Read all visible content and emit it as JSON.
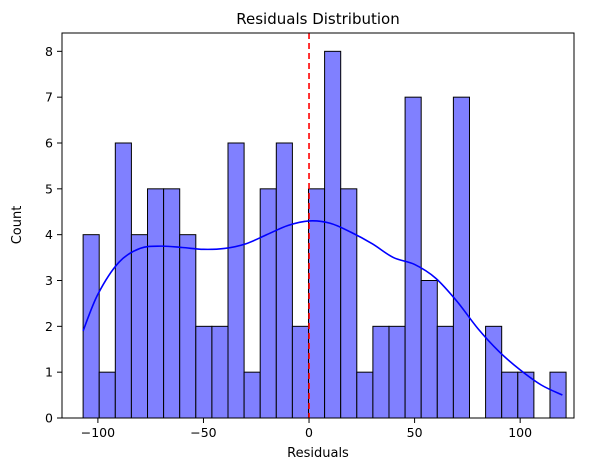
{
  "chart_data": {
    "type": "bar",
    "title": "Residuals Distribution",
    "xlabel": "Residuals",
    "ylabel": "Count",
    "xlim": [
      -117,
      125.5
    ],
    "ylim": [
      0,
      8.4
    ],
    "xticks": [
      -100,
      -50,
      0,
      50,
      100
    ],
    "yticks": [
      0,
      1,
      2,
      3,
      4,
      5,
      6,
      7,
      8
    ],
    "bin_start": -107,
    "bin_width": 7.625,
    "counts": [
      4,
      1,
      6,
      4,
      5,
      5,
      4,
      2,
      2,
      6,
      1,
      5,
      6,
      2,
      5,
      8,
      5,
      1,
      2,
      2,
      7,
      3,
      2,
      7,
      0,
      2,
      1,
      1,
      0,
      1
    ],
    "kde": {
      "name": "density estimate",
      "x": [
        -107,
        -100,
        -90,
        -80,
        -70,
        -60,
        -50,
        -40,
        -30,
        -20,
        -10,
        0,
        10,
        20,
        30,
        40,
        50,
        60,
        70,
        80,
        90,
        100,
        110,
        120
      ],
      "y": [
        1.9,
        2.7,
        3.4,
        3.7,
        3.75,
        3.72,
        3.68,
        3.7,
        3.8,
        4.0,
        4.2,
        4.3,
        4.25,
        4.05,
        3.8,
        3.5,
        3.35,
        3.05,
        2.55,
        1.95,
        1.45,
        1.05,
        0.72,
        0.5
      ]
    },
    "reference_line": {
      "x": 0,
      "style": "dashed"
    },
    "colors": {
      "bar_fill": "#8080ff",
      "bar_edge": "#000000",
      "kde_line": "#0000ff",
      "reference_line": "#ff0000"
    },
    "grid": false,
    "legend": "none"
  }
}
